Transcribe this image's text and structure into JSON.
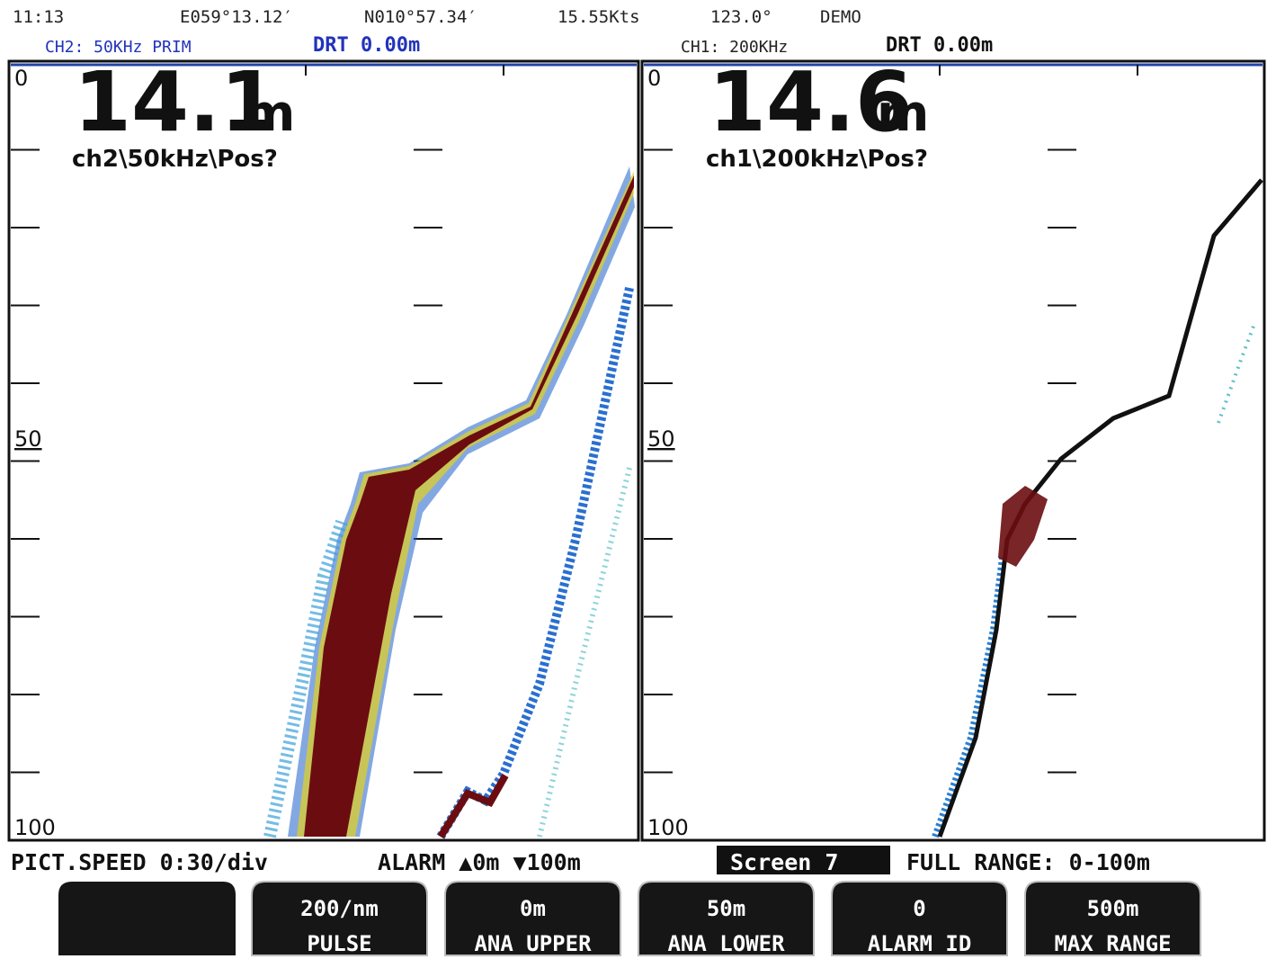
{
  "status_bar": {
    "time": "11:13",
    "longitude": "E059°13.12′",
    "latitude": "N010°57.34′",
    "speed": "15.55Kts",
    "heading": "123.0°",
    "mode": "DEMO"
  },
  "channels": [
    {
      "label": "CH2: 50KHz PRIM",
      "draft": "DRT 0.00m",
      "depth": "14.1",
      "unit": "m",
      "info": "ch2\\50kHz\\Pos?",
      "scale": [
        "0",
        "50",
        "100"
      ]
    },
    {
      "label": "CH1: 200KHz",
      "draft": "DRT 0.00m",
      "depth": "14.6",
      "unit": "m",
      "info": "ch1\\200kHz\\Pos?",
      "scale": [
        "0",
        "50",
        "100"
      ]
    }
  ],
  "bottom_bar": {
    "pict_speed": "PICT.SPEED 0:30/div",
    "alarm": "ALARM ▲0m ▼100m",
    "screen": "Screen 7",
    "full_range": "FULL RANGE: 0-100m"
  },
  "softkeys": [
    {
      "value": "200/nm",
      "label": "PULSE"
    },
    {
      "value": "0m",
      "label": "ANA UPPER"
    },
    {
      "value": "50m",
      "label": "ANA LOWER"
    },
    {
      "value": "0",
      "label": "ALARM ID"
    },
    {
      "value": "500m",
      "label": "MAX RANGE"
    }
  ]
}
